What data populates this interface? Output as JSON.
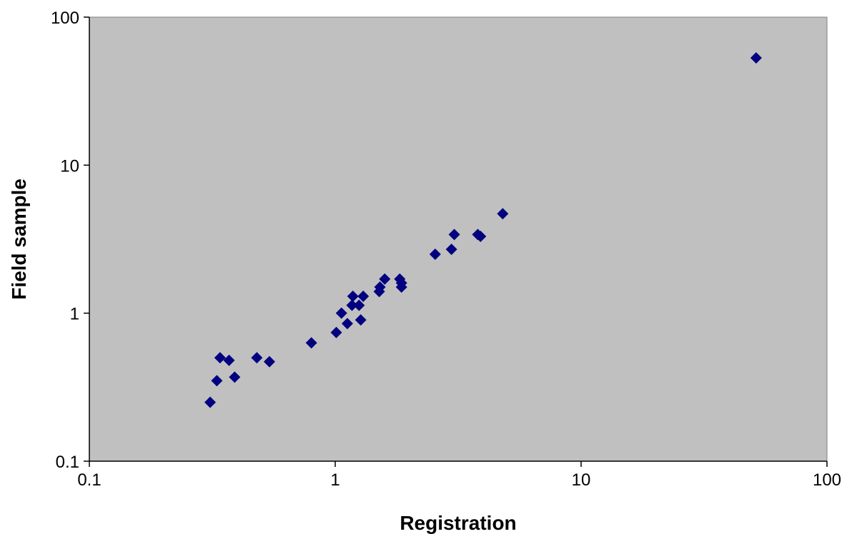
{
  "chart_data": {
    "type": "scatter",
    "title": "",
    "xlabel": "Registration",
    "ylabel": "Field sample",
    "xscale": "log",
    "yscale": "log",
    "xlim": [
      0.1,
      100
    ],
    "ylim": [
      0.1,
      100
    ],
    "x_ticks": [
      "0.1",
      "1",
      "10",
      "100"
    ],
    "y_ticks": [
      "0.1",
      "1",
      "10",
      "100"
    ],
    "plot_background": "#c0c0c0",
    "marker_color": "#000080",
    "marker": "diamond",
    "grid": false,
    "legend": "none",
    "series": [
      {
        "x": [
          0.31,
          0.33,
          0.34,
          0.37,
          0.39,
          0.48,
          0.54,
          0.8,
          1.01,
          1.06,
          1.12,
          1.17,
          1.18,
          1.25,
          1.27,
          1.3,
          1.51,
          1.52,
          1.59,
          1.83,
          1.86,
          1.86,
          2.55,
          2.97,
          3.05,
          3.8,
          3.9,
          4.8,
          51.5
        ],
        "y": [
          0.25,
          0.35,
          0.5,
          0.48,
          0.37,
          0.5,
          0.47,
          0.63,
          0.74,
          1.0,
          0.85,
          1.13,
          1.3,
          1.13,
          0.9,
          1.3,
          1.4,
          1.5,
          1.7,
          1.7,
          1.6,
          1.5,
          2.5,
          2.7,
          3.4,
          3.4,
          3.3,
          4.7,
          53.0
        ]
      }
    ]
  }
}
